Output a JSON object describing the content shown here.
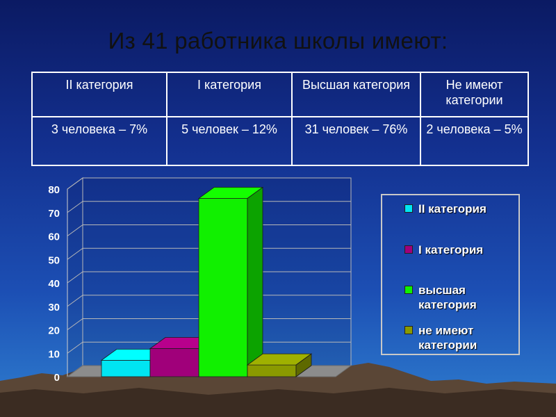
{
  "title": "Из 41 работника школы имеют:",
  "table": {
    "headers": [
      "II категория",
      "I категория",
      "Высшая категория",
      "Не имеют категории"
    ],
    "values": [
      "3 человека – 7%",
      "5 человек – 12%",
      "31 человек – 76%",
      "2 человека – 5%"
    ]
  },
  "chart_data": {
    "type": "bar",
    "categories": [
      "II категория",
      "I категория",
      "высшая категория",
      "не имеют категории"
    ],
    "values": [
      7,
      12,
      76,
      5
    ],
    "colors": [
      "#00e5f2",
      "#a0007a",
      "#11f000",
      "#8a9a00"
    ],
    "ylim": [
      0,
      80
    ],
    "yticks": [
      "0",
      "10",
      "20",
      "30",
      "40",
      "50",
      "60",
      "70",
      "80"
    ],
    "grid": true,
    "legend_position": "right",
    "legend": [
      "II категория",
      "I категория",
      "высшая\nкатегория",
      "не имеют\nкатегории"
    ]
  }
}
